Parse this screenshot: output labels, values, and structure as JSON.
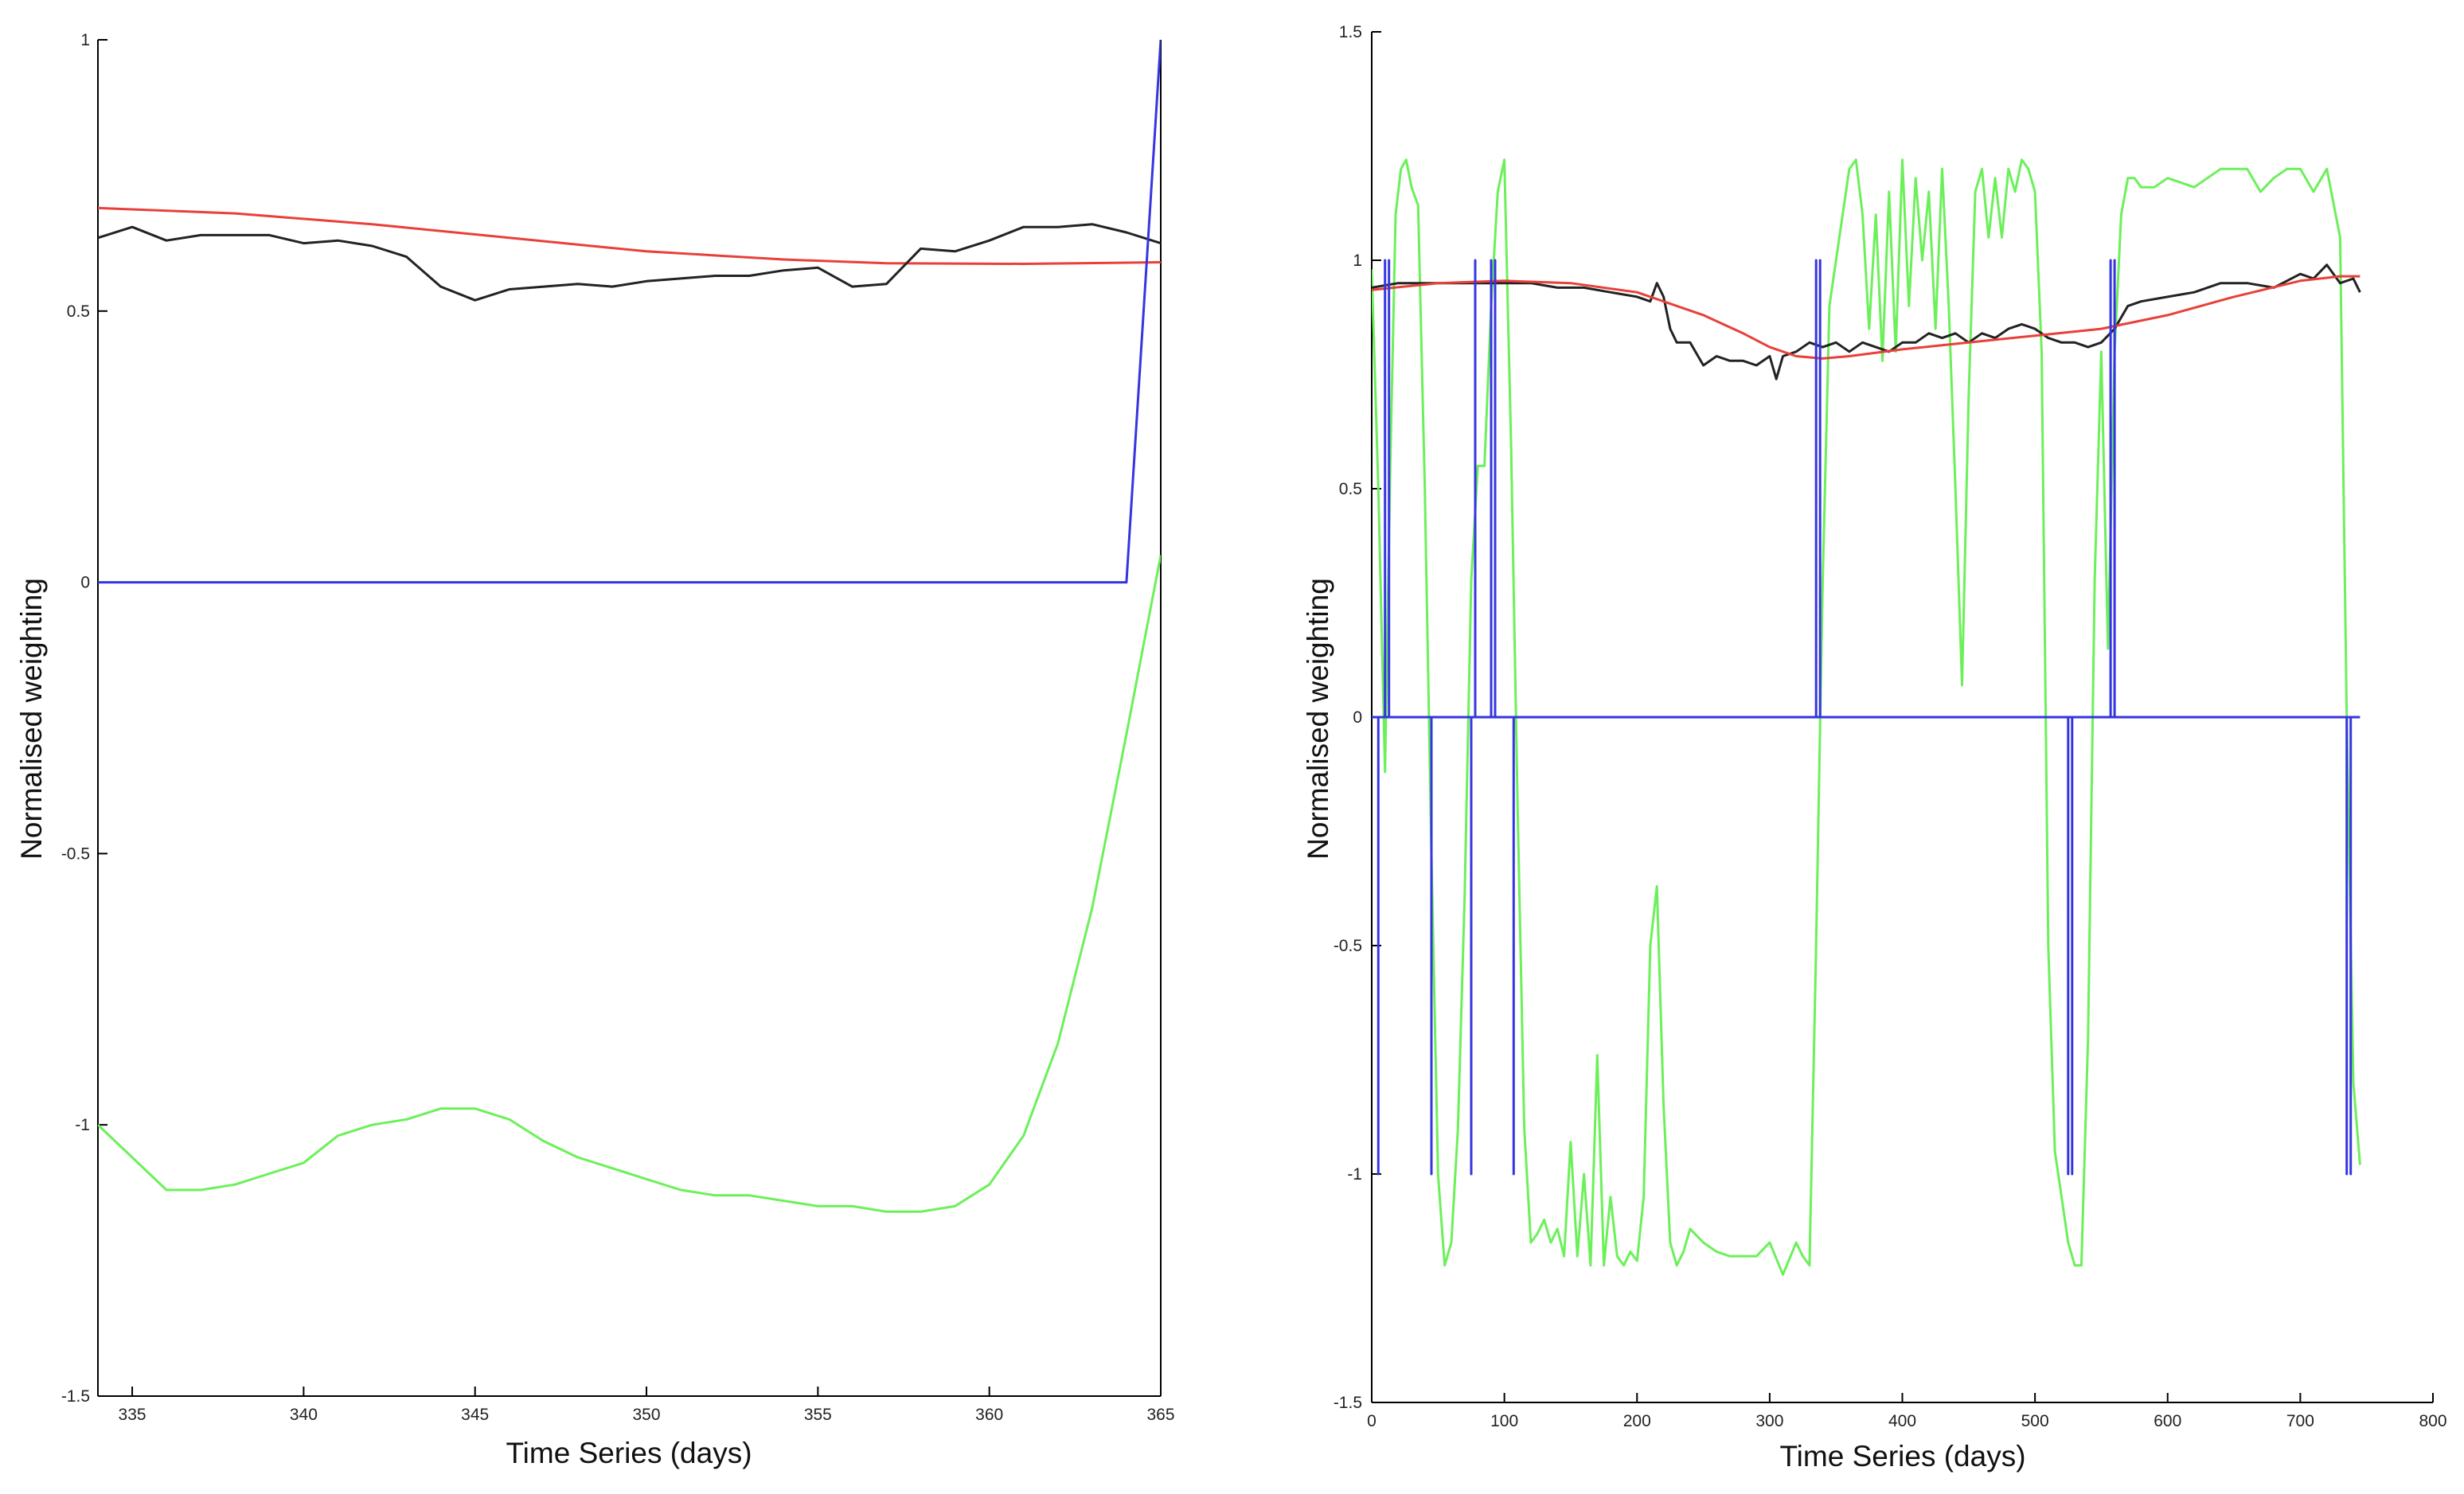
{
  "chart_data": [
    {
      "type": "line",
      "xlabel": "Time Series (days)",
      "ylabel": "Normalised weighting",
      "xlim": [
        334,
        365
      ],
      "ylim": [
        -1.5,
        1
      ],
      "xticks": [
        335,
        340,
        345,
        350,
        355,
        360,
        365
      ],
      "xtick_labels": [
        "335",
        "340",
        "345",
        "350",
        "355",
        "360",
        "365"
      ],
      "yticks": [
        1,
        0.5,
        0,
        -0.5,
        -1,
        -1.5
      ],
      "ytick_labels": [
        "1",
        "0.5",
        "0",
        "-0.5",
        "-1",
        "-1.5"
      ],
      "grid": false,
      "series": [
        {
          "color": "#e8403a",
          "x": [
            334,
            338,
            342,
            346,
            350,
            354,
            357,
            361,
            365
          ],
          "y": [
            0.69,
            0.68,
            0.66,
            0.635,
            0.61,
            0.595,
            0.588,
            0.587,
            0.59
          ]
        },
        {
          "color": "#222222",
          "x": [
            334,
            335,
            336,
            337,
            338,
            339,
            340,
            341,
            342,
            343,
            344,
            345,
            346,
            347,
            348,
            349,
            350,
            351,
            352,
            353,
            354,
            355,
            356,
            357,
            358,
            359,
            360,
            361,
            362,
            363,
            364,
            365
          ],
          "y": [
            0.635,
            0.655,
            0.63,
            0.64,
            0.64,
            0.64,
            0.625,
            0.63,
            0.62,
            0.6,
            0.545,
            0.52,
            0.54,
            0.545,
            0.55,
            0.545,
            0.555,
            0.56,
            0.565,
            0.565,
            0.575,
            0.58,
            0.545,
            0.55,
            0.615,
            0.61,
            0.63,
            0.655,
            0.655,
            0.66,
            0.645,
            0.625
          ]
        },
        {
          "color": "#3535e0",
          "x": [
            334,
            364,
            365
          ],
          "y": [
            0,
            0,
            1
          ]
        },
        {
          "color": "#6cf05a",
          "x": [
            334,
            335,
            336,
            337,
            338,
            339,
            340,
            341,
            342,
            343,
            344,
            345,
            346,
            347,
            348,
            349,
            350,
            351,
            352,
            353,
            354,
            355,
            356,
            357,
            358,
            359,
            360,
            361,
            362,
            363,
            364,
            365
          ],
          "y": [
            -1.0,
            -1.06,
            -1.12,
            -1.12,
            -1.11,
            -1.09,
            -1.07,
            -1.02,
            -1.0,
            -0.99,
            -0.97,
            -0.97,
            -0.99,
            -1.03,
            -1.06,
            -1.08,
            -1.1,
            -1.12,
            -1.13,
            -1.13,
            -1.14,
            -1.15,
            -1.15,
            -1.16,
            -1.16,
            -1.15,
            -1.11,
            -1.02,
            -0.85,
            -0.6,
            -0.28,
            0.05
          ]
        }
      ]
    },
    {
      "type": "line",
      "xlabel": "Time Series (days)",
      "ylabel": "Normalised weighting",
      "xlim": [
        0,
        800
      ],
      "ylim": [
        -1.5,
        1.5
      ],
      "xticks": [
        0,
        100,
        200,
        300,
        400,
        500,
        600,
        700,
        800
      ],
      "xtick_labels": [
        "0",
        "100",
        "200",
        "300",
        "400",
        "500",
        "600",
        "700",
        "800"
      ],
      "yticks": [
        1.5,
        1,
        0.5,
        0,
        -0.5,
        -1,
        -1.5
      ],
      "ytick_labels": [
        "1.5",
        "1",
        "0.5",
        "0",
        "-0.5",
        "-1",
        "-1.5"
      ],
      "grid": false,
      "series": [
        {
          "color": "#6cf05a",
          "x": [
            0,
            5,
            10,
            14,
            18,
            22,
            26,
            30,
            35,
            40,
            45,
            50,
            55,
            60,
            65,
            70,
            75,
            80,
            85,
            90,
            95,
            100,
            105,
            110,
            115,
            120,
            125,
            130,
            135,
            140,
            145,
            150,
            155,
            160,
            165,
            170,
            175,
            180,
            185,
            190,
            195,
            200,
            205,
            210,
            215,
            220,
            225,
            230,
            235,
            240,
            250,
            260,
            270,
            280,
            290,
            300,
            310,
            320,
            325,
            330,
            335,
            340,
            345,
            350,
            355,
            360,
            365,
            370,
            375,
            380,
            385,
            390,
            395,
            400,
            405,
            410,
            415,
            420,
            425,
            430,
            435,
            440,
            445,
            450,
            455,
            460,
            465,
            470,
            475,
            480,
            485,
            490,
            495,
            500,
            505,
            510,
            515,
            520,
            525,
            530,
            535,
            540,
            545,
            550,
            555,
            560,
            565,
            570,
            575,
            580,
            590,
            600,
            620,
            640,
            660,
            670,
            680,
            690,
            700,
            710,
            720,
            730,
            735,
            740,
            745
          ],
          "y": [
            0.98,
            0.5,
            -0.12,
            0.55,
            1.1,
            1.2,
            1.22,
            1.16,
            1.12,
            0.5,
            -0.3,
            -1.0,
            -1.2,
            -1.15,
            -0.9,
            -0.4,
            0.3,
            0.55,
            0.55,
            0.9,
            1.15,
            1.22,
            0.6,
            -0.2,
            -0.9,
            -1.15,
            -1.13,
            -1.1,
            -1.15,
            -1.12,
            -1.18,
            -0.93,
            -1.18,
            -1.0,
            -1.2,
            -0.74,
            -1.2,
            -1.05,
            -1.18,
            -1.2,
            -1.17,
            -1.19,
            -1.05,
            -0.5,
            -0.37,
            -0.85,
            -1.15,
            -1.2,
            -1.17,
            -1.12,
            -1.15,
            -1.17,
            -1.18,
            -1.18,
            -1.18,
            -1.15,
            -1.22,
            -1.15,
            -1.18,
            -1.2,
            -0.5,
            0.3,
            0.9,
            1.0,
            1.1,
            1.2,
            1.22,
            1.1,
            0.85,
            1.1,
            0.78,
            1.15,
            0.8,
            1.22,
            0.9,
            1.18,
            1.0,
            1.15,
            0.85,
            1.2,
            0.9,
            0.5,
            0.07,
            0.7,
            1.15,
            1.2,
            1.05,
            1.18,
            1.05,
            1.2,
            1.15,
            1.22,
            1.2,
            1.15,
            0.8,
            -0.5,
            -0.95,
            -1.05,
            -1.15,
            -1.2,
            -1.2,
            -0.7,
            0.3,
            0.8,
            0.15,
            0.8,
            1.1,
            1.18,
            1.18,
            1.16,
            1.16,
            1.18,
            1.16,
            1.2,
            1.2,
            1.15,
            1.18,
            1.2,
            1.2,
            1.15,
            1.2,
            1.05,
            0.0,
            -0.8,
            -0.98
          ]
        },
        {
          "color": "#222222",
          "x": [
            0,
            20,
            40,
            60,
            80,
            100,
            120,
            140,
            160,
            180,
            200,
            210,
            215,
            220,
            225,
            230,
            240,
            250,
            260,
            270,
            280,
            290,
            300,
            305,
            310,
            320,
            330,
            340,
            350,
            360,
            370,
            380,
            390,
            400,
            410,
            420,
            430,
            440,
            450,
            460,
            470,
            480,
            490,
            500,
            510,
            520,
            530,
            540,
            550,
            560,
            570,
            580,
            600,
            620,
            640,
            660,
            680,
            700,
            710,
            720,
            730,
            740,
            745
          ],
          "y": [
            0.94,
            0.95,
            0.95,
            0.95,
            0.95,
            0.95,
            0.95,
            0.94,
            0.94,
            0.93,
            0.92,
            0.91,
            0.95,
            0.92,
            0.85,
            0.82,
            0.82,
            0.77,
            0.79,
            0.78,
            0.78,
            0.77,
            0.79,
            0.74,
            0.79,
            0.8,
            0.82,
            0.81,
            0.82,
            0.8,
            0.82,
            0.81,
            0.8,
            0.82,
            0.82,
            0.84,
            0.83,
            0.84,
            0.82,
            0.84,
            0.83,
            0.85,
            0.86,
            0.85,
            0.83,
            0.82,
            0.82,
            0.81,
            0.82,
            0.85,
            0.9,
            0.91,
            0.92,
            0.93,
            0.95,
            0.95,
            0.94,
            0.97,
            0.96,
            0.99,
            0.95,
            0.96,
            0.93
          ]
        },
        {
          "color": "#e8403a",
          "x": [
            0,
            50,
            100,
            150,
            200,
            250,
            280,
            300,
            320,
            340,
            360,
            400,
            450,
            500,
            550,
            600,
            650,
            700,
            730,
            745
          ],
          "y": [
            0.935,
            0.95,
            0.955,
            0.95,
            0.93,
            0.88,
            0.84,
            0.81,
            0.79,
            0.785,
            0.79,
            0.805,
            0.82,
            0.835,
            0.85,
            0.88,
            0.92,
            0.955,
            0.965,
            0.965
          ]
        },
        {
          "color": "#3535e0",
          "x": [
            0,
            5,
            5,
            5,
            10,
            10,
            10,
            13,
            13,
            13,
            45,
            45,
            45,
            75,
            75,
            75,
            78,
            78,
            78,
            90,
            90,
            90,
            93,
            93,
            93,
            107,
            107,
            107,
            335,
            335,
            335,
            338,
            338,
            338,
            525,
            525,
            525,
            528,
            528,
            528,
            557,
            557,
            557,
            560,
            560,
            560,
            735,
            735,
            735,
            738,
            738,
            738,
            745
          ],
          "y": [
            0,
            0,
            -1,
            0,
            0,
            1,
            0,
            0,
            1,
            0,
            0,
            -1,
            0,
            0,
            -1,
            0,
            0,
            1,
            0,
            0,
            1,
            0,
            0,
            1,
            0,
            0,
            -1,
            0,
            0,
            1,
            0,
            0,
            1,
            0,
            0,
            -1,
            0,
            0,
            -1,
            0,
            0,
            1,
            0,
            0,
            1,
            0,
            0,
            -1,
            0,
            0,
            -1,
            0,
            0
          ]
        }
      ]
    }
  ]
}
